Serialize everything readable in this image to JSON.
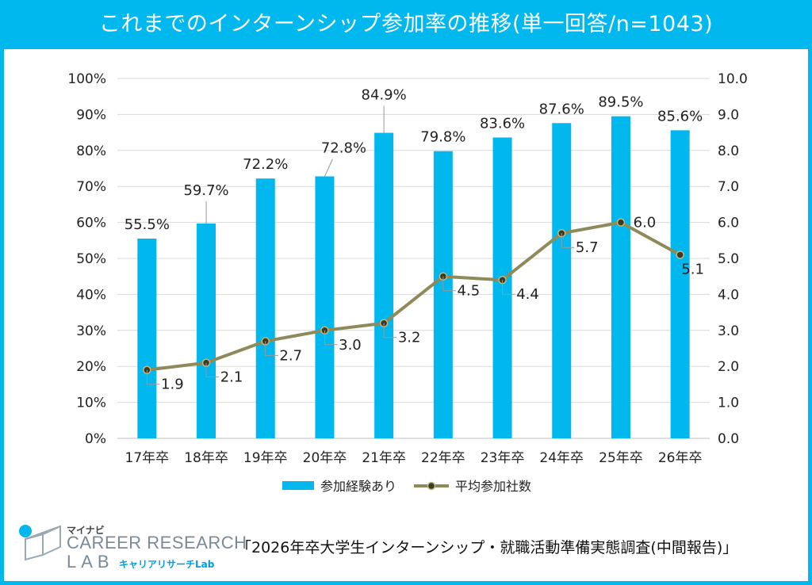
{
  "title": "これまでのインターンシップ参加率の推移(単一回答/n=1043)",
  "source": "「2026年卒大学生インターンシップ・就職活動準備実態調査(中間報告)」",
  "brand": {
    "small": "マイナビ",
    "main": "CAREER RESEARCH",
    "lab": "LAB",
    "sub": "キャリアリサーチLab"
  },
  "colors": {
    "bar": "#00b7ee",
    "line": "#8e8a5a",
    "marker": "#3d3a1e",
    "title_bg": "#00b7ee"
  },
  "chart_data": {
    "type": "bar",
    "categories": [
      "17年卒",
      "18年卒",
      "19年卒",
      "20年卒",
      "21年卒",
      "22年卒",
      "23年卒",
      "24年卒",
      "25年卒",
      "26年卒"
    ],
    "series": [
      {
        "name": "参加経験あり",
        "type": "bar",
        "axis": "left",
        "values": [
          55.5,
          59.7,
          72.2,
          72.8,
          84.9,
          79.8,
          83.6,
          87.6,
          89.5,
          85.6
        ],
        "labels": [
          "55.5%",
          "59.7%",
          "72.2%",
          "72.8%",
          "84.9%",
          "79.8%",
          "83.6%",
          "87.6%",
          "89.5%",
          "85.6%"
        ]
      },
      {
        "name": "平均参加社数",
        "type": "line",
        "axis": "right",
        "values": [
          1.9,
          2.1,
          2.7,
          3.0,
          3.2,
          4.5,
          4.4,
          5.7,
          6.0,
          5.1
        ],
        "labels": [
          "1.9",
          "2.1",
          "2.7",
          "3.0",
          "3.2",
          "4.5",
          "4.4",
          "5.7",
          "6.0",
          "5.1"
        ]
      }
    ],
    "y_left": {
      "range": [
        0,
        100
      ],
      "ticks": [
        "0%",
        "10%",
        "20%",
        "30%",
        "40%",
        "50%",
        "60%",
        "70%",
        "80%",
        "90%",
        "100%"
      ]
    },
    "y_right": {
      "range": [
        0,
        10
      ],
      "ticks": [
        "0.0",
        "1.0",
        "2.0",
        "3.0",
        "4.0",
        "5.0",
        "6.0",
        "7.0",
        "8.0",
        "9.0",
        "10.0"
      ]
    },
    "grid": true,
    "legend": "bottom"
  }
}
